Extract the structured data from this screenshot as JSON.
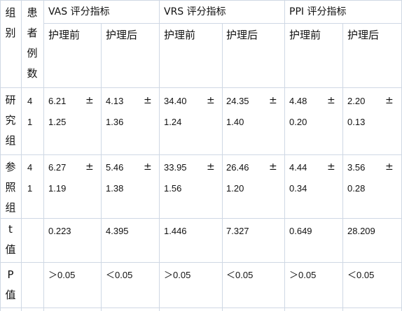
{
  "table": {
    "header": {
      "group_col": [
        "组",
        "别"
      ],
      "count_col": [
        "患",
        "者",
        "例",
        "数"
      ],
      "vas": "VAS 评分指标",
      "vrs": "VRS 评分指标",
      "ppi": "PPI 评分指标",
      "before": "护理前",
      "after": "护理后"
    },
    "pm": "±",
    "rows": {
      "research": {
        "name": [
          "研",
          "究",
          "组"
        ],
        "count": [
          "4",
          "1"
        ],
        "vas_before": [
          "6.21",
          "1.25"
        ],
        "vas_after": [
          "4.13",
          "1.36"
        ],
        "vrs_before": [
          "34.40",
          "1.24"
        ],
        "vrs_after": [
          "24.35",
          "1.40"
        ],
        "ppi_before": [
          "4.48",
          "0.20"
        ],
        "ppi_after": [
          "2.20",
          "0.13"
        ]
      },
      "reference": {
        "name": [
          "参",
          "照",
          "组"
        ],
        "count": [
          "4",
          "1"
        ],
        "vas_before": [
          "6.27",
          "1.19"
        ],
        "vas_after": [
          "5.46",
          "1.38"
        ],
        "vrs_before": [
          "33.95",
          "1.56"
        ],
        "vrs_after": [
          "26.46",
          "1.20"
        ],
        "ppi_before": [
          "4.44",
          "0.34"
        ],
        "ppi_after": [
          "3.56",
          "0.28"
        ]
      },
      "t": {
        "name": [
          "t",
          "值"
        ],
        "vas_before": "0.223",
        "vas_after": "4.395",
        "vrs_before": "1.446",
        "vrs_after": "7.327",
        "ppi_before": "0.649",
        "ppi_after": "28.209"
      },
      "p": {
        "name": [
          "P",
          "值"
        ],
        "vas_before": "＞0.05",
        "vas_after": "＜0.05",
        "vrs_before": "＞0.05",
        "vrs_after": "＜0.05",
        "ppi_before": "＞0.05",
        "ppi_after": "＜0.05"
      }
    }
  }
}
